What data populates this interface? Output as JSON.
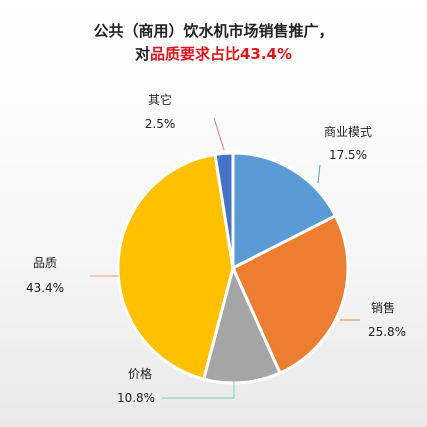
{
  "title": {
    "line1": "公共（商用）饮水机市场销售推广，",
    "line2_prefix": "对",
    "line2_highlight": "品质要求占比43.4%",
    "highlight_color": "#e0161b"
  },
  "chart_data": {
    "type": "pie",
    "title": "公共（商用）饮水机市场销售推广，对品质要求占比43.4%",
    "slices": [
      {
        "label": "商业模式",
        "value": 17.5,
        "display": "17.5%",
        "color": "#5b9bd5"
      },
      {
        "label": "销售",
        "value": 25.8,
        "display": "25.8%",
        "color": "#ed7d31"
      },
      {
        "label": "价格",
        "value": 10.8,
        "display": "10.8%",
        "color": "#a5a5a5"
      },
      {
        "label": "品质",
        "value": 43.4,
        "display": "43.4%",
        "color": "#ffc000"
      },
      {
        "label": "其它",
        "value": 2.5,
        "display": "2.5%",
        "color": "#4472c4"
      }
    ],
    "start_angle_deg": 0,
    "direction": "clockwise",
    "legend": "none",
    "data_labels": "outside-with-leader-lines"
  }
}
